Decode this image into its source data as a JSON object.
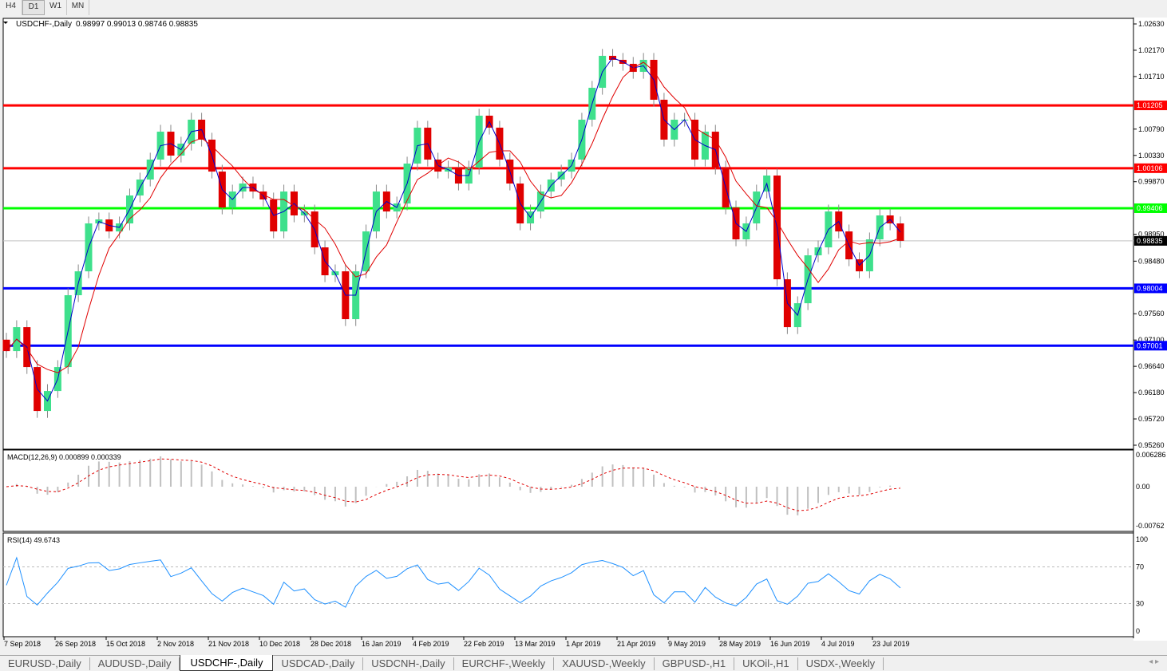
{
  "timeframes": [
    "H4",
    "D1",
    "W1",
    "MN"
  ],
  "active_timeframe": "D1",
  "chart": {
    "title": "USDCHF-,Daily",
    "ohlc": "0.98997 0.99013 0.98746 0.98835"
  },
  "macd": {
    "label": "MACD(12,26,9) 0.000899 0.000339",
    "ticks": [
      "0.006286",
      "0.00",
      "-0.00762"
    ]
  },
  "rsi": {
    "label": "RSI(14) 49.6743",
    "ticks": [
      "100",
      "70",
      "30",
      "0"
    ]
  },
  "chart_data": {
    "type": "candlestick",
    "symbol": "USDCHF-",
    "period": "Daily",
    "price_ticks": [
      "1.02630",
      "1.02170",
      "1.01710",
      "1.00790",
      "1.00330",
      "0.99870",
      "0.98950",
      "0.98480",
      "0.97560",
      "0.97100",
      "0.96640",
      "0.96180",
      "0.95720",
      "0.95260"
    ],
    "ylim": [
      0.9526,
      1.0263
    ],
    "date_labels": [
      "7 Sep 2018",
      "26 Sep 2018",
      "15 Oct 2018",
      "2 Nov 2018",
      "21 Nov 2018",
      "10 Dec 2018",
      "28 Dec 2018",
      "16 Jan 2019",
      "4 Feb 2019",
      "22 Feb 2019",
      "13 Mar 2019",
      "1 Apr 2019",
      "21 Apr 2019",
      "9 May 2019",
      "28 May 2019",
      "16 Jun 2019",
      "4 Jul 2019",
      "23 Jul 2019"
    ],
    "closes": [
      0.96906,
      0.97325,
      0.96627,
      0.95859,
      0.96208,
      0.96627,
      0.97884,
      0.98302,
      0.9914,
      0.9921,
      0.99,
      0.9914,
      0.99629,
      0.99908,
      1.00257,
      1.00745,
      1.00327,
      1.00536,
      1.00955,
      1.00606,
      1.00047,
      0.99419,
      0.99698,
      0.99838,
      0.99698,
      0.99559,
      0.99,
      0.99698,
      0.9928,
      0.99349,
      0.98721,
      0.98233,
      0.98302,
      0.97465,
      0.98302,
      0.99,
      0.99698,
      0.99349,
      0.99489,
      1.00187,
      1.00815,
      1.00257,
      1.00047,
      1.00117,
      0.99838,
      1.00117,
      1.01025,
      1.00815,
      1.00257,
      0.99838,
      0.9914,
      0.99349,
      0.99698,
      0.99908,
      1.00047,
      1.00257,
      1.00955,
      1.01513,
      1.02072,
      1.02002,
      1.01932,
      1.01792,
      1.02002,
      1.01304,
      1.00606,
      1.00955,
      1.00955,
      1.00257,
      1.00745,
      1.00117,
      0.99419,
      0.98861,
      0.9914,
      0.99698,
      0.99978,
      0.98163,
      0.97325,
      0.97744,
      0.98582,
      0.98721,
      0.99349,
      0.99,
      0.98512,
      0.98302,
      0.98861,
      0.9928,
      0.9914,
      0.98835
    ],
    "horizontal_lines": [
      {
        "price": "1.01205",
        "color": "#ff0000"
      },
      {
        "price": "1.00106",
        "color": "#ff0000"
      },
      {
        "price": "0.99406",
        "color": "#00ff00"
      },
      {
        "price": "0.98004",
        "color": "#0000ff"
      },
      {
        "price": "0.97001",
        "color": "#0000ff"
      }
    ],
    "current_price": "0.98835",
    "colors": {
      "bull": "#3ee08c",
      "bear": "#e00000",
      "ma_fast": "#0000cc",
      "ma_slow": "#e00000",
      "rsi": "#1e90ff",
      "macd_hist": "#c0c0c0",
      "macd_signal": "#e00000"
    }
  },
  "symbol_tabs": [
    "EURUSD-,Daily",
    "AUDUSD-,Daily",
    "USDCHF-,Daily",
    "USDCAD-,Daily",
    "USDCNH-,Daily",
    "EURCHF-,Weekly",
    "XAUUSD-,Weekly",
    "GBPUSD-,H1",
    "UKOil-,H1",
    "USDX-,Weekly"
  ],
  "active_tab": "USDCHF-,Daily"
}
